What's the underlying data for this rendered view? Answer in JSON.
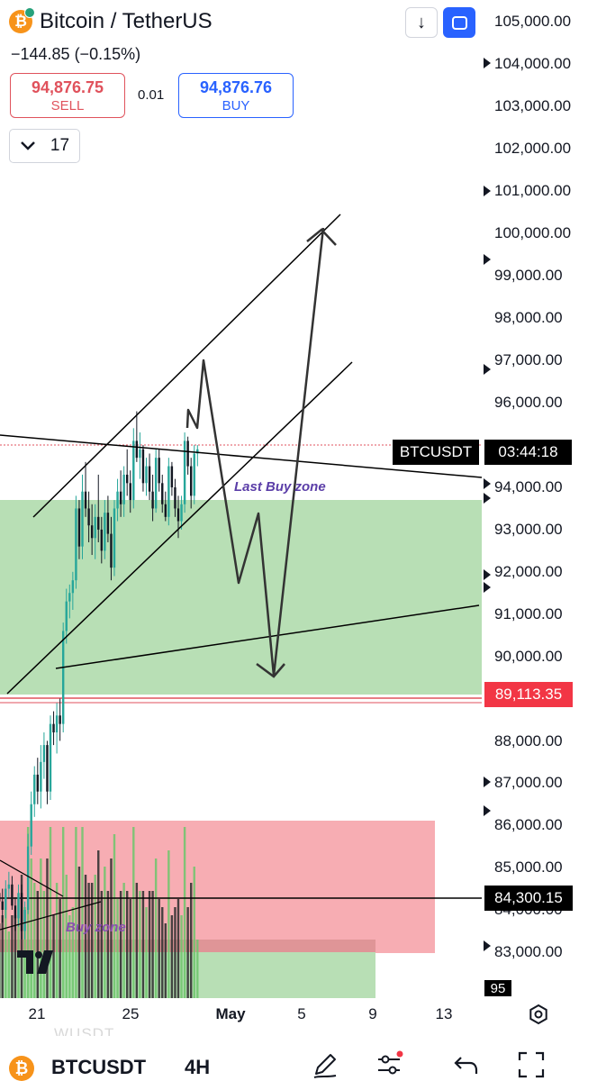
{
  "header": {
    "title": "Bitcoin / TetherUS",
    "change": "−144.85 (−0.15%)",
    "sell": {
      "price": "94,876.75",
      "label": "SELL"
    },
    "spread": "0.01",
    "buy": {
      "price": "94,876.76",
      "label": "BUY"
    },
    "interval_count": "17"
  },
  "colors": {
    "up": "#26a69a",
    "down": "#131722",
    "buy_zone": "#b8dfb5",
    "sell_zone": "#f7adb3",
    "red_tag": "#f23645",
    "accent": "#2962ff"
  },
  "price_scale": {
    "ticks": [
      "105,000.00",
      "104,000.00",
      "103,000.00",
      "102,000.00",
      "101,000.00",
      "100,000.00",
      "99,000.00",
      "98,000.00",
      "97,000.00",
      "96,000.00",
      "94,000.00",
      "93,000.00",
      "92,000.00",
      "91,000.00",
      "90,000.00",
      "88,000.00",
      "87,000.00",
      "86,000.00",
      "85,000.00",
      "84,000.00",
      "83,000.00"
    ],
    "symbol_tag": "BTCUSDT",
    "countdown": "03:44:18",
    "red_level": "89,113.35",
    "black_level": "84,300.15",
    "small_tag": "95"
  },
  "annotations": {
    "last_buy_zone": "Last Buy zone",
    "buy_zone": "Buy zone"
  },
  "time_axis": {
    "labels": [
      "21",
      "25",
      "May",
      "5",
      "9",
      "13"
    ]
  },
  "bottom_bar": {
    "ghost_text": "WUSDT",
    "symbol": "BTCUSDT",
    "interval": "4H"
  },
  "chart_data": {
    "type": "candlestick",
    "y_range": [
      82500,
      105500
    ],
    "time_labels": [
      "21",
      "25",
      "May",
      "5",
      "9",
      "13"
    ],
    "candles": [
      [
        84400,
        84600,
        83900,
        84200
      ],
      [
        84200,
        84500,
        83700,
        84000
      ],
      [
        84000,
        84700,
        83800,
        84500
      ],
      [
        84500,
        84900,
        84300,
        84600
      ],
      [
        84600,
        84800,
        84000,
        84100
      ],
      [
        84100,
        84300,
        83500,
        83800
      ],
      [
        83800,
        84600,
        83600,
        84400
      ],
      [
        84400,
        84600,
        83300,
        83500
      ],
      [
        83500,
        84200,
        83300,
        84000
      ],
      [
        84000,
        85800,
        83900,
        85500
      ],
      [
        85500,
        86800,
        85300,
        86500
      ],
      [
        86500,
        87400,
        86200,
        87200
      ],
      [
        87200,
        87600,
        86500,
        86800
      ],
      [
        86800,
        87900,
        86400,
        87500
      ],
      [
        87500,
        88200,
        87100,
        87900
      ],
      [
        87900,
        88000,
        86500,
        86800
      ],
      [
        86800,
        88600,
        86600,
        88400
      ],
      [
        88400,
        88700,
        87900,
        88200
      ],
      [
        88200,
        88900,
        87700,
        88600
      ],
      [
        88600,
        89000,
        88000,
        88400
      ],
      [
        88400,
        90800,
        88200,
        90600
      ],
      [
        90600,
        91600,
        90300,
        91300
      ],
      [
        91300,
        91700,
        90900,
        91500
      ],
      [
        91500,
        92000,
        91100,
        91800
      ],
      [
        91800,
        93800,
        91600,
        93500
      ],
      [
        93500,
        93700,
        92300,
        92600
      ],
      [
        92600,
        94300,
        92300,
        93900
      ],
      [
        93900,
        94600,
        93300,
        93500
      ],
      [
        93500,
        93900,
        92700,
        93100
      ],
      [
        93100,
        93600,
        92400,
        92800
      ],
      [
        92800,
        93600,
        92300,
        93300
      ],
      [
        93300,
        94300,
        92700,
        93000
      ],
      [
        93000,
        93300,
        92200,
        92500
      ],
      [
        92500,
        93700,
        92300,
        93400
      ],
      [
        93400,
        93800,
        92700,
        92900
      ],
      [
        92900,
        93300,
        91800,
        92100
      ],
      [
        92100,
        93700,
        91900,
        93500
      ],
      [
        93500,
        94200,
        93200,
        93900
      ],
      [
        93900,
        94400,
        93300,
        93600
      ],
      [
        93600,
        94500,
        93300,
        94300
      ],
      [
        94300,
        94900,
        93800,
        94100
      ],
      [
        94100,
        94400,
        93400,
        93700
      ],
      [
        93700,
        95400,
        93500,
        95100
      ],
      [
        95100,
        95800,
        94600,
        94700
      ],
      [
        94700,
        95300,
        94200,
        94900
      ],
      [
        94900,
        95000,
        93900,
        94100
      ],
      [
        94100,
        94700,
        93800,
        94500
      ],
      [
        94500,
        94800,
        93700,
        93900
      ],
      [
        93900,
        94300,
        93200,
        93500
      ],
      [
        93500,
        94900,
        93400,
        94700
      ],
      [
        94700,
        94900,
        93900,
        94100
      ],
      [
        94100,
        94300,
        93400,
        93600
      ],
      [
        93600,
        93900,
        93200,
        93300
      ],
      [
        93300,
        94700,
        93100,
        94500
      ],
      [
        94500,
        94600,
        93800,
        94000
      ],
      [
        94000,
        94200,
        93300,
        93500
      ],
      [
        93500,
        93800,
        92800,
        93200
      ],
      [
        93200,
        93800,
        93000,
        93600
      ],
      [
        93600,
        95300,
        93400,
        95100
      ],
      [
        95100,
        95200,
        94300,
        94500
      ],
      [
        94500,
        94700,
        93500,
        93800
      ],
      [
        93800,
        95000,
        93600,
        94800
      ],
      [
        94800,
        95000,
        94500,
        94900
      ]
    ]
  }
}
